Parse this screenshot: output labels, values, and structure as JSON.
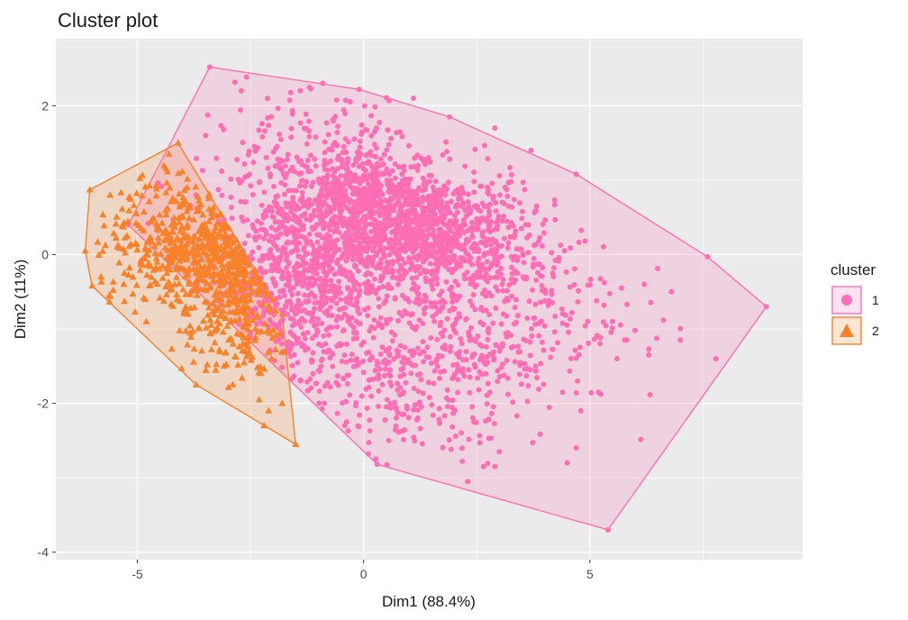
{
  "colors": {
    "panel_background": "#EBEBEB",
    "grid_major": "#FFFFFF",
    "cluster_1": "#FF6EB4",
    "cluster_2": "#F8812A"
  },
  "chart_data": {
    "type": "scatter",
    "title": "Cluster plot",
    "xlabel": "Dim1 (88.4%)",
    "ylabel": "Dim2 (11%)",
    "xlim": [
      -6.8,
      9.7
    ],
    "ylim": [
      -4.1,
      2.9
    ],
    "x_ticks": [
      -5,
      0,
      5
    ],
    "y_ticks": [
      2,
      0,
      -2,
      -4
    ],
    "x_tick_labels": [
      "-5",
      "0",
      "5"
    ],
    "y_tick_labels": [
      "2",
      "0",
      "-2",
      "-4"
    ],
    "grid": true,
    "legend": {
      "title": "cluster",
      "position": "right",
      "entries": [
        {
          "label": "1",
          "shape": "circle",
          "color": "#FF6EB4"
        },
        {
          "label": "2",
          "shape": "triangle",
          "color": "#F8812A"
        }
      ]
    },
    "series": [
      {
        "name": "1",
        "shape": "circle",
        "color": "#FF6EB4",
        "hull": [
          [
            -3.4,
            2.52
          ],
          [
            -0.1,
            2.22
          ],
          [
            1.9,
            1.85
          ],
          [
            4.7,
            1.08
          ],
          [
            7.6,
            -0.03
          ],
          [
            8.9,
            -0.7
          ],
          [
            5.4,
            -3.7
          ],
          [
            0.3,
            -2.82
          ],
          [
            -5.2,
            0.4
          ]
        ],
        "dense_regions": [
          {
            "center": [
              0.0,
              0.6
            ],
            "spread": [
              0.9,
              0.45
            ],
            "count": 700
          },
          {
            "center": [
              1.6,
              0.25
            ],
            "spread": [
              1.0,
              0.4
            ],
            "count": 700
          },
          {
            "center": [
              -1.5,
              -0.3
            ],
            "spread": [
              0.9,
              0.6
            ],
            "count": 650
          },
          {
            "center": [
              2.5,
              -0.7
            ],
            "spread": [
              1.6,
              0.7
            ],
            "count": 450
          },
          {
            "center": [
              0.5,
              -1.7
            ],
            "spread": [
              1.4,
              0.6
            ],
            "count": 350
          },
          {
            "center": [
              -1.2,
              1.1
            ],
            "spread": [
              1.3,
              0.6
            ],
            "count": 250
          }
        ],
        "outliers": [
          [
            7.0,
            -1.15
          ],
          [
            6.2,
            -0.4
          ],
          [
            6.8,
            -0.5
          ],
          [
            5.7,
            -0.45
          ],
          [
            4.5,
            -2.8
          ],
          [
            4.7,
            -2.6
          ],
          [
            2.9,
            -2.85
          ],
          [
            2.3,
            -3.05
          ],
          [
            3.0,
            -2.65
          ],
          [
            4.4,
            -1.85
          ],
          [
            4.7,
            -1.86
          ],
          [
            6.3,
            -1.35
          ],
          [
            5.6,
            -1.4
          ],
          [
            2.9,
            1.7
          ],
          [
            1.1,
            2.1
          ],
          [
            -0.9,
            2.3
          ],
          [
            -2.7,
            2.2
          ],
          [
            3.7,
            1.4
          ],
          [
            5.5,
            -0.9
          ],
          [
            4.8,
            -2.1
          ]
        ]
      },
      {
        "name": "2",
        "shape": "triangle",
        "color": "#F8812A",
        "hull": [
          [
            -4.1,
            1.5
          ],
          [
            -1.8,
            -0.8
          ],
          [
            -1.5,
            -2.55
          ],
          [
            -3.7,
            -1.75
          ],
          [
            -6.0,
            -0.42
          ],
          [
            -6.15,
            0.05
          ],
          [
            -6.05,
            0.87
          ]
        ],
        "dense_regions": [
          {
            "center": [
              -3.6,
              0.05
            ],
            "spread": [
              0.7,
              0.45
            ],
            "count": 380
          },
          {
            "center": [
              -2.6,
              -0.5
            ],
            "spread": [
              0.5,
              0.45
            ],
            "count": 260
          },
          {
            "center": [
              -4.4,
              0.2
            ],
            "spread": [
              0.8,
              0.5
            ],
            "count": 160
          },
          {
            "center": [
              -3.2,
              -1.3
            ],
            "spread": [
              0.7,
              0.5
            ],
            "count": 60
          }
        ],
        "outliers": [
          [
            -5.6,
            0.8
          ],
          [
            -2.1,
            -2.1
          ],
          [
            -1.8,
            -2.0
          ],
          [
            -2.2,
            -2.3
          ],
          [
            -4.8,
            -0.9
          ],
          [
            -5.3,
            -0.4
          ],
          [
            -5.8,
            -0.3
          ],
          [
            -4.3,
            1.35
          ],
          [
            -3.9,
            0.9
          ]
        ]
      }
    ]
  }
}
